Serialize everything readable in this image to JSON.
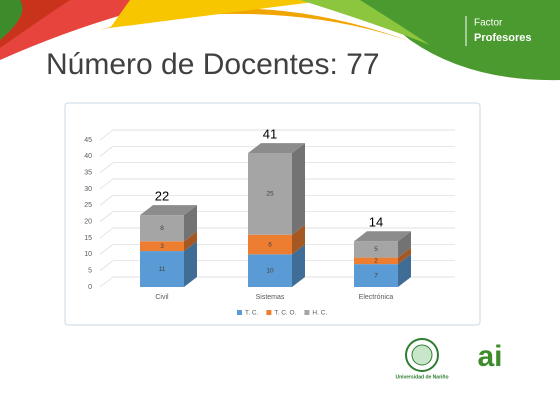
{
  "header": {
    "line1": "Factor",
    "line2": "Profesores"
  },
  "slide_title": "Número de Docentes: 77",
  "chart_data": {
    "type": "bar3d_stacked",
    "categories": [
      "Civil",
      "Sistemas",
      "Electrónica"
    ],
    "series": [
      {
        "name": "T. C.",
        "color": "#5b9bd5",
        "values": [
          11,
          10,
          7
        ]
      },
      {
        "name": "T. C. O.",
        "color": "#ed7d31",
        "values": [
          3,
          6,
          2
        ]
      },
      {
        "name": "H. C.",
        "color": "#a5a5a5",
        "values": [
          8,
          25,
          5
        ]
      }
    ],
    "totals": [
      22,
      41,
      14
    ],
    "ylim": [
      0,
      45
    ],
    "yticks": [
      0,
      5,
      10,
      15,
      20,
      25,
      30,
      35,
      40,
      45
    ],
    "grid": true,
    "legend": "bottom"
  },
  "logos": {
    "university": "Universidad de Nariño",
    "accreditation": "ai"
  }
}
